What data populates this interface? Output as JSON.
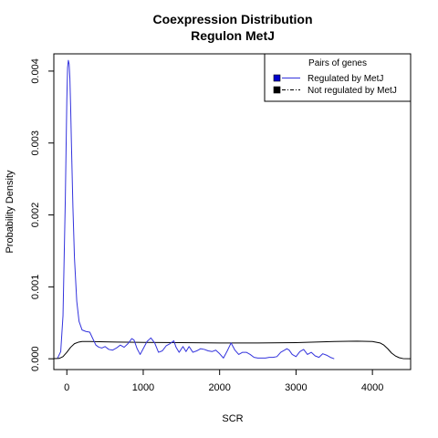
{
  "chart_data": {
    "type": "line",
    "title": "Coexpression Distribution",
    "subtitle": "Regulon MetJ",
    "xlabel": "SCR",
    "ylabel": "Probability Density",
    "xlim": [
      -170,
      4500
    ],
    "ylim": [
      -0.00015,
      0.00424
    ],
    "x_ticks": [
      0,
      1000,
      2000,
      3000,
      4000
    ],
    "x_tick_labels": [
      "0",
      "1000",
      "2000",
      "3000",
      "4000"
    ],
    "y_ticks": [
      0.0,
      0.001,
      0.002,
      0.003,
      0.004
    ],
    "y_tick_labels": [
      "0.000",
      "0.001",
      "0.002",
      "0.003",
      "0.004"
    ],
    "legend": {
      "title": "Pairs of genes",
      "position": "top-right",
      "entries": [
        {
          "label": "Regulated by  MetJ",
          "color": "#0000cc",
          "line": "solid"
        },
        {
          "label": "Not regulated by  MetJ",
          "color": "#000000",
          "line": "dashed"
        }
      ]
    },
    "grid": false,
    "series": [
      {
        "name": "Regulated by  MetJ",
        "color": "#3333dd",
        "x": [
          -120,
          -80,
          -50,
          -20,
          0,
          10,
          20,
          30,
          40,
          50,
          60,
          80,
          100,
          130,
          160,
          200,
          250,
          300,
          340,
          380,
          420,
          460,
          500,
          550,
          600,
          650,
          700,
          750,
          800,
          850,
          880,
          920,
          960,
          1000,
          1050,
          1100,
          1150,
          1200,
          1250,
          1300,
          1350,
          1400,
          1430,
          1470,
          1520,
          1560,
          1600,
          1650,
          1700,
          1750,
          1800,
          1850,
          1900,
          1950,
          2000,
          2050,
          2100,
          2150,
          2200,
          2250,
          2300,
          2350,
          2400,
          2450,
          2500,
          2550,
          2600,
          2650,
          2700,
          2750,
          2800,
          2850,
          2880,
          2910,
          2950,
          3000,
          3050,
          3100,
          3150,
          3200,
          3250,
          3300,
          3350,
          3400,
          3450,
          3500
        ],
        "y": [
          1e-05,
          0.0001,
          0.0006,
          0.0022,
          0.0036,
          0.00405,
          0.00415,
          0.0041,
          0.0039,
          0.0035,
          0.003,
          0.0021,
          0.0014,
          0.0008,
          0.00052,
          0.0004,
          0.00038,
          0.00037,
          0.00028,
          0.00019,
          0.00016,
          0.00015,
          0.00017,
          0.00013,
          0.00012,
          0.00015,
          0.00019,
          0.00016,
          0.00021,
          0.00028,
          0.00026,
          0.00014,
          6e-05,
          0.00014,
          0.00024,
          0.00029,
          0.00022,
          9e-05,
          0.00011,
          0.00018,
          0.00021,
          0.00025,
          0.00016,
          9e-05,
          0.00017,
          0.0001,
          0.00017,
          9e-05,
          0.00011,
          0.00014,
          0.00013,
          0.00011,
          0.0001,
          0.00012,
          7e-05,
          1e-05,
          0.00011,
          0.00022,
          0.00012,
          6e-05,
          9e-05,
          9e-05,
          6e-05,
          2e-05,
          1e-05,
          1e-05,
          1e-05,
          2e-05,
          2e-05,
          3e-05,
          9e-05,
          0.00012,
          0.00014,
          0.00012,
          6e-05,
          3e-05,
          0.0001,
          0.00013,
          6e-05,
          9e-05,
          4e-05,
          2e-05,
          7e-05,
          5e-05,
          2e-05,
          0.0
        ]
      },
      {
        "name": "Not regulated by  MetJ",
        "color": "#000000",
        "x": [
          -200,
          -100,
          -50,
          0,
          50,
          100,
          150,
          200,
          300,
          500,
          800,
          1000,
          1500,
          2000,
          2500,
          3000,
          3500,
          3800,
          4000,
          4100,
          4150,
          4200,
          4250,
          4300,
          4350,
          4400,
          4500
        ],
        "y": [
          0.0,
          5e-06,
          3e-05,
          9e-05,
          0.00016,
          0.00021,
          0.00023,
          0.00024,
          0.00024,
          0.000235,
          0.00023,
          0.000228,
          0.000225,
          0.00022,
          0.00022,
          0.000225,
          0.00024,
          0.000245,
          0.00024,
          0.00022,
          0.00019,
          0.00014,
          8e-05,
          4e-05,
          1.5e-05,
          3e-06,
          0.0
        ]
      }
    ]
  }
}
